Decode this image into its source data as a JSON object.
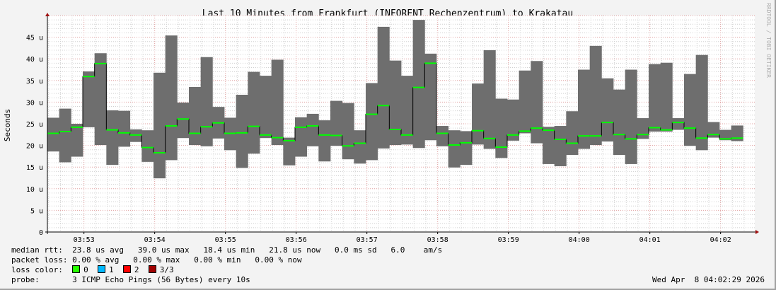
{
  "chart_data": {
    "type": "bar",
    "title": "Last 10 Minutes from Frankfurt (INFORENT Rechenzentrum) to Krakatau",
    "ylabel": "Seconds",
    "ylim": [
      0,
      50
    ],
    "yticks": [
      0,
      5,
      10,
      15,
      20,
      25,
      30,
      35,
      40,
      45
    ],
    "ytick_labels": [
      "0",
      "5 u",
      "10 u",
      "15 u",
      "20 u",
      "25 u",
      "30 u",
      "35 u",
      "40 u",
      "45 u"
    ],
    "xlim": [
      "03:52:29",
      "04:02:29"
    ],
    "xtick_labels": [
      "03:53",
      "03:54",
      "03:55",
      "03:56",
      "03:57",
      "03:58",
      "03:59",
      "04:00",
      "04:01",
      "04:02"
    ],
    "interval_seconds": 10,
    "grid": true,
    "units": "us",
    "min": [
      18.6,
      16.1,
      17.4,
      24.2,
      20.1,
      15.5,
      19.7,
      20.8,
      16.2,
      12.4,
      16.6,
      21.7,
      20.1,
      19.8,
      21.6,
      18.9,
      14.8,
      18.1,
      21.7,
      20.1,
      15.4,
      17.4,
      19.8,
      16.3,
      19.9,
      16.8,
      15.8,
      16.6,
      19.3,
      20.1,
      20.2,
      19.4,
      21.2,
      19.8,
      14.9,
      15.5,
      20.2,
      19.2,
      17.1,
      21.1,
      22.8,
      20.5,
      15.7,
      15.2,
      17.8,
      19.2,
      20.1,
      20.9,
      17.8,
      15.7,
      21.5,
      23.2,
      23.2,
      23.6,
      19.9,
      18.9,
      21.8,
      21.2,
      21.0
    ],
    "median": [
      22.8,
      23.2,
      24.2,
      35.9,
      38.9,
      23.6,
      22.9,
      22.4,
      19.5,
      18.3,
      24.5,
      26.1,
      22.8,
      24.3,
      25.2,
      22.8,
      22.9,
      24.4,
      22.4,
      21.8,
      21.1,
      24.2,
      24.5,
      22.4,
      22.3,
      19.9,
      20.5,
      27.2,
      29.2,
      23.7,
      22.4,
      33.4,
      39.0,
      22.8,
      20.1,
      20.6,
      23.4,
      21.6,
      19.6,
      22.4,
      23.3,
      24.0,
      23.5,
      21.4,
      20.5,
      22.2,
      22.2,
      25.3,
      22.5,
      21.5,
      22.5,
      24.1,
      23.6,
      25.3,
      24.0,
      21.7,
      22.5,
      21.5,
      21.7
    ],
    "max": [
      26.4,
      28.5,
      25.0,
      37.1,
      41.3,
      28.1,
      28.0,
      23.7,
      23.5,
      36.8,
      45.4,
      29.9,
      33.5,
      40.4,
      28.9,
      26.4,
      31.7,
      37.0,
      36.1,
      39.8,
      21.8,
      26.5,
      27.3,
      25.8,
      30.3,
      29.8,
      23.5,
      34.4,
      47.4,
      39.6,
      36.1,
      49.0,
      41.2,
      24.5,
      23.5,
      23.3,
      34.3,
      42.0,
      30.8,
      30.6,
      37.3,
      39.5,
      24.3,
      24.5,
      27.9,
      37.5,
      43.0,
      35.5,
      32.9,
      37.5,
      26.3,
      38.8,
      39.1,
      26.3,
      36.5,
      40.9,
      25.4,
      23.6,
      24.6
    ],
    "colors": {
      "smoke": "#6e6e6e",
      "median": "#00ff00",
      "major_grid": "#e0a0a0",
      "minor_grid": "#d0d0d0",
      "axis_arrow": "#a01010"
    }
  },
  "watermark": "RRDTOOL / TOBI OETIKER",
  "legend": {
    "median_rtt_label": "median rtt:",
    "median_rtt_values": "23.8 us avg   39.0 us max   18.4 us min   21.8 us now   0.0 ms sd   6.0    am/s",
    "packet_loss_label": "packet loss:",
    "packet_loss_values": "0.00 % avg   0.00 % max   0.00 % min   0.00 % now",
    "loss_color_label": "loss color:",
    "loss_colors": [
      {
        "label": "0",
        "color": "#26ff00"
      },
      {
        "label": "1",
        "color": "#00b8ff"
      },
      {
        "label": "2",
        "color": "#ff0000"
      },
      {
        "label": "3/3",
        "color": "#a00000"
      }
    ],
    "probe_label": "probe:",
    "probe_value": "3 ICMP Echo Pings (56 Bytes) every 10s",
    "timestamp": "Wed Apr  8 04:02:29 2026"
  }
}
